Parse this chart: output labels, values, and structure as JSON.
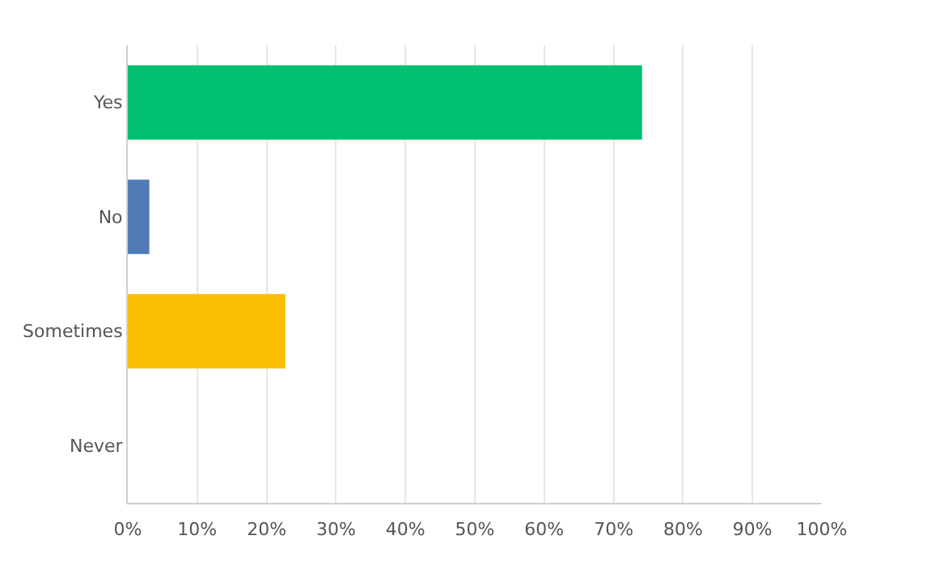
{
  "chart_data": {
    "type": "bar",
    "orientation": "horizontal",
    "categories": [
      "Yes",
      "No",
      "Sometimes",
      "Never"
    ],
    "values": [
      74.1,
      3.1,
      22.7,
      0
    ],
    "colors": [
      "#00bf6f",
      "#507cb6",
      "#f9be00",
      "#7d3c98"
    ],
    "xlim": [
      0,
      100
    ],
    "xticks": [
      {
        "value": 0,
        "label": "0%"
      },
      {
        "value": 10,
        "label": "10%"
      },
      {
        "value": 20,
        "label": "20%"
      },
      {
        "value": 30,
        "label": "30%"
      },
      {
        "value": 40,
        "label": "40%"
      },
      {
        "value": 50,
        "label": "50%"
      },
      {
        "value": 60,
        "label": "60%"
      },
      {
        "value": 70,
        "label": "70%"
      },
      {
        "value": 80,
        "label": "80%"
      },
      {
        "value": 90,
        "label": "90%"
      },
      {
        "value": 100,
        "label": "100%"
      }
    ],
    "grid": "x"
  }
}
